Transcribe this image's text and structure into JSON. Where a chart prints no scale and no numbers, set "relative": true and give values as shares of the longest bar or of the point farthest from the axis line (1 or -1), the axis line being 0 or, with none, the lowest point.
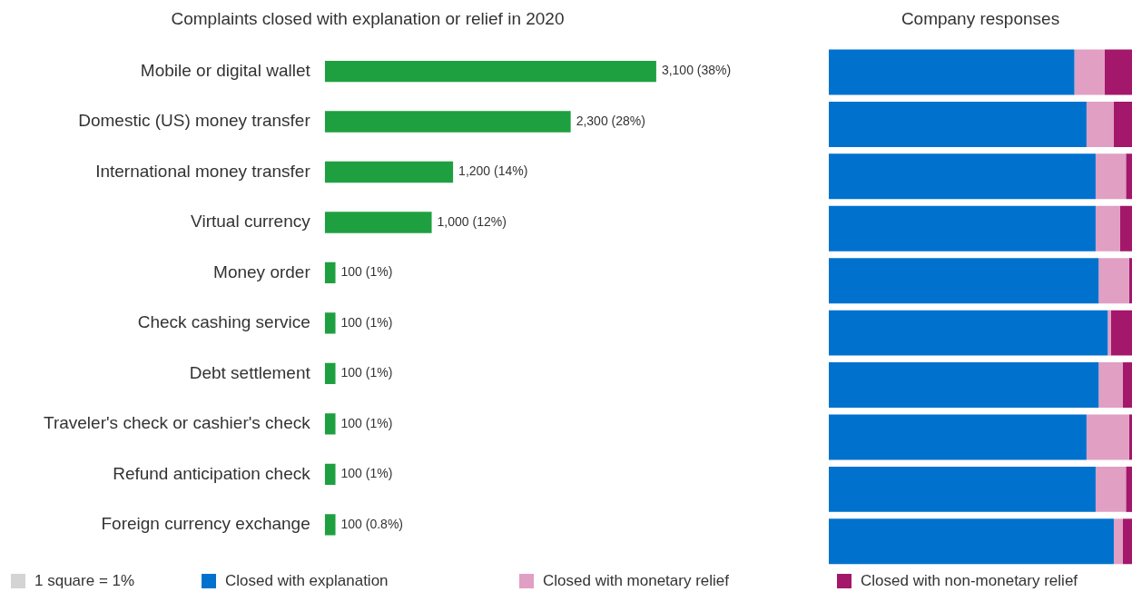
{
  "chart_data": [
    {
      "type": "bar",
      "orientation": "horizontal",
      "title": "Complaints closed with explanation or relief in 2020",
      "categories": [
        "Mobile or digital wallet",
        "Domestic (US) money transfer",
        "International money transfer",
        "Virtual currency",
        "Money order",
        "Check cashing service",
        "Debt settlement",
        "Traveler's check or cashier's check",
        "Refund anticipation check",
        "Foreign currency exchange"
      ],
      "values": [
        3100,
        2300,
        1200,
        1000,
        100,
        100,
        100,
        100,
        100,
        100
      ],
      "value_labels": [
        "3,100 (38%)",
        "2,300 (28%)",
        "1,200 (14%)",
        "1,000 (12%)",
        "100 (1%)",
        "100 (1%)",
        "100 (1%)",
        "100 (1%)",
        "100 (1%)",
        "100 (0.8%)"
      ],
      "color": "#1fa040",
      "tick_labels": "y",
      "legend": false
    },
    {
      "type": "bar",
      "orientation": "horizontal",
      "stacked": true,
      "title": "Company responses",
      "categories": [
        null,
        null,
        null,
        null,
        null,
        null,
        null,
        null,
        null,
        null
      ],
      "series": [
        {
          "name": "Closed with explanation",
          "color": "#0072ce",
          "values": [
            0.81,
            0.85,
            0.88,
            0.88,
            0.89,
            0.92,
            0.89,
            0.85,
            0.88,
            0.94
          ]
        },
        {
          "name": "Closed with monetary relief",
          "color": "#e09fc3",
          "values": [
            0.1,
            0.09,
            0.1,
            0.08,
            0.1,
            0.01,
            0.08,
            0.14,
            0.1,
            0.03
          ]
        },
        {
          "name": "Closed with non-monetary relief",
          "color": "#a3186a",
          "values": [
            0.09,
            0.06,
            0.02,
            0.04,
            0.01,
            0.07,
            0.03,
            0.01,
            0.02,
            0.03
          ]
        }
      ],
      "relative": true,
      "tick_labels": false,
      "legend": "bottom",
      "annotations": [
        "1 square = 1%"
      ]
    }
  ]
}
